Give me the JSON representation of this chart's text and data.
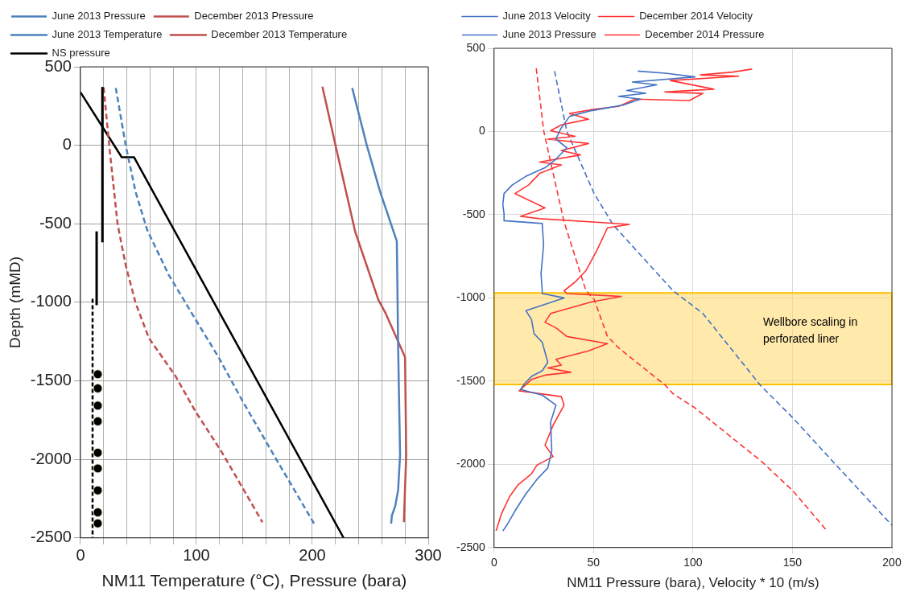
{
  "chart_data": [
    {
      "type": "line",
      "xlabel": "NM11 Temperature (°C), Pressure (bara)",
      "ylabel": "Depth (mMD)",
      "xlim": [
        0,
        300
      ],
      "ylim": [
        -2500,
        500
      ],
      "xticks": [
        0,
        {
          "value": 20,
          "label": null
        },
        {
          "value": 40,
          "label": null
        },
        {
          "value": 60,
          "label": null
        },
        {
          "value": 80,
          "label": null
        },
        100,
        {
          "value": 120,
          "label": null
        },
        {
          "value": 140,
          "label": null
        },
        {
          "value": 160,
          "label": null
        },
        {
          "value": 180,
          "label": null
        },
        200,
        {
          "value": 220,
          "label": null
        },
        {
          "value": 240,
          "label": null
        },
        {
          "value": 260,
          "label": null
        },
        {
          "value": 280,
          "label": null
        },
        300
      ],
      "yticks": [
        -2500,
        -2000,
        -1500,
        -1000,
        -500,
        0,
        500
      ],
      "grid": true,
      "legend": "top",
      "marker": "none",
      "series": [
        {
          "name": "June 2013 Pressure",
          "color": "#4f81bd",
          "line_style": "dashed",
          "x": [
            30.5,
            39,
            47.6,
            57.6,
            76,
            99,
            119,
            140,
            167,
            201.6
          ],
          "values": [
            365,
            0,
            -298,
            -540,
            -823,
            -1106,
            -1348,
            -1631,
            -1975,
            -2410
          ]
        },
        {
          "name": "December 2013 Pressure",
          "color": "#c0504d",
          "line_style": "dashed",
          "x": [
            20,
            24.8,
            32,
            39,
            47.6,
            59,
            82,
            99,
            122,
            157
          ],
          "values": [
            369,
            0,
            -500,
            -763,
            -1005,
            -1227,
            -1470,
            -1692,
            -1955,
            -2400
          ]
        },
        {
          "name": "June 2013 Temperature",
          "color": "#4f81bd",
          "line_style": "solid",
          "x": [
            234.4,
            247,
            258.6,
            272.9,
            274,
            275.7,
            274,
            271.5,
            268.6,
            268
          ],
          "values": [
            365,
            0,
            -298,
            -611,
            -1268,
            -1975,
            -2197,
            -2298,
            -2359,
            -2410
          ]
        },
        {
          "name": "December 2013 Temperature",
          "color": "#c0504d",
          "line_style": "solid",
          "x": [
            208.7,
            220,
            237,
            257,
            263,
            280,
            281,
            280,
            279
          ],
          "values": [
            373,
            0,
            -551,
            -985,
            -1066,
            -1349,
            -1975,
            -2177,
            -2400
          ]
        },
        {
          "name": "NS pressure",
          "color": "#000000",
          "line_style": "solid",
          "x": [
            0,
            35.6,
            46.2,
            227
          ],
          "values": [
            338,
            -76,
            -76,
            -2500
          ]
        }
      ]
    },
    {
      "type": "line",
      "xlabel": "NM11 Pressure (bara), Velocity * 10 (m/s)",
      "xlim": [
        0,
        200
      ],
      "ylim": [
        -2500,
        500
      ],
      "xticks": [
        0,
        50,
        100,
        150,
        200
      ],
      "yticks": [
        -2500,
        -2000,
        -1500,
        -1000,
        -500,
        0,
        500
      ],
      "grid": true,
      "legend": "top",
      "marker": "none",
      "bands": [
        {
          "axis": "y",
          "from": -1520,
          "to": -970,
          "label": "Wellbore scaling in perforated liner",
          "color": "#ffd966"
        }
      ],
      "series": [
        {
          "name": "June 2013 Velocity",
          "color": "#4472c4",
          "line_style": "solid",
          "x": [
            72.2,
            87,
            101,
            69.5,
            81.8,
            66.7,
            76.3,
            62.6,
            73.6,
            65.3,
            48.9,
            38,
            33.8,
            31,
            36.6,
            31,
            25.6,
            15.9,
            9.2,
            5,
            4.4,
            5,
            5,
            24.2,
            24.9,
            23.6,
            24.2,
            24.2,
            35.2,
            16,
            18.8,
            20.1,
            24.2,
            27,
            24.2,
            18.8,
            15.3,
            13.3,
            24.2,
            31.1,
            28.4,
            29,
            27,
            21.5,
            16,
            10.5,
            6.4,
            4.4
          ],
          "values": [
            363,
            349,
            328,
            297,
            280,
            246,
            229,
            211,
            194,
            160,
            125,
            91,
            22,
            -46,
            -98,
            -167,
            -218,
            -270,
            -321,
            -373,
            -441,
            -493,
            -536,
            -553,
            -682,
            -854,
            -957,
            -974,
            -1000,
            -1077,
            -1129,
            -1215,
            -1266,
            -1387,
            -1438,
            -1472,
            -1515,
            -1550,
            -1584,
            -1644,
            -1747,
            -1919,
            -2022,
            -2091,
            -2177,
            -2280,
            -2366,
            -2400
          ]
        },
        {
          "name": "December 2014 Velocity",
          "color": "#ff3333",
          "line_style": "solid",
          "x": [
            129.7,
            120,
            103.7,
            122.9,
            88.6,
            110.5,
            85.9,
            105,
            98.2,
            70.8,
            62.6,
            50.3,
            38,
            47.5,
            33.8,
            28.4,
            40.7,
            27,
            47.5,
            33.8,
            43.4,
            22.9,
            33.8,
            22.9,
            17.4,
            10.5,
            25.6,
            13.3,
            22.9,
            68,
            57,
            51.6,
            46.2,
            40.7,
            35.2,
            36.6,
            64,
            48.4,
            28.4,
            25.6,
            31.1,
            36.6,
            57,
            47.5,
            31.1,
            33.8,
            27,
            38.6,
            25.6,
            18.8,
            12.6,
            33.8,
            35.2,
            29.7,
            25.6,
            29.7,
            21.5,
            18.8,
            11.9,
            7.8,
            3.7,
            1
          ],
          "values": [
            375,
            357,
            340,
            332,
            306,
            254,
            237,
            229,
            186,
            194,
            151,
            134,
            108,
            74,
            40,
            5,
            -29,
            -46,
            -72,
            -115,
            -141,
            -184,
            -201,
            -252,
            -321,
            -373,
            -459,
            -510,
            -524,
            -558,
            -579,
            -716,
            -836,
            -905,
            -957,
            -974,
            -991,
            -1026,
            -1094,
            -1146,
            -1180,
            -1232,
            -1275,
            -1318,
            -1369,
            -1404,
            -1421,
            -1447,
            -1464,
            -1490,
            -1558,
            -1593,
            -1644,
            -1764,
            -1885,
            -1953,
            -2005,
            -2057,
            -2125,
            -2194,
            -2297,
            -2400
          ]
        },
        {
          "name": "June 2013 Pressure",
          "color": "#4472c4",
          "line_style": "dashed",
          "x": [
            30.4,
            36.6,
            50.3,
            59.9,
            90,
            105,
            133.8,
            150.3,
            172,
            200
          ],
          "values": [
            363,
            0,
            -373,
            -562,
            -957,
            -1094,
            -1524,
            -1722,
            -2005,
            -2366
          ]
        },
        {
          "name": "December 2014 Pressure",
          "color": "#ff3333",
          "line_style": "dashed",
          "x": [
            21.2,
            25,
            29.7,
            35.2,
            46.2,
            50.3,
            57,
            62.6,
            86,
            90,
            101,
            135,
            150.3,
            167.4
          ],
          "values": [
            380,
            0,
            -252,
            -544,
            -957,
            -1009,
            -1232,
            -1300,
            -1524,
            -1576,
            -1661,
            -1988,
            -2160,
            -2400
          ]
        }
      ]
    }
  ]
}
